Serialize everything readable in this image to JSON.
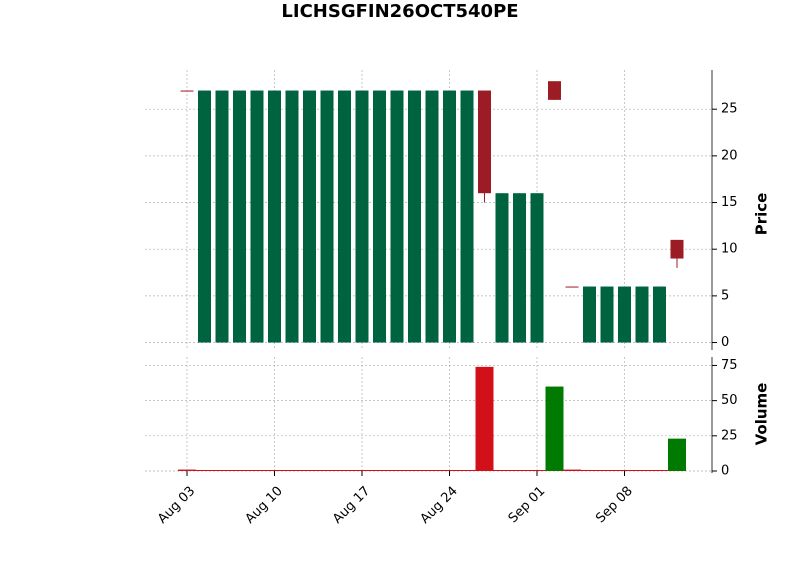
{
  "chart_data": {
    "type": "candlestick",
    "title": "LICHSGFIN26OCT540PE",
    "categories": [
      "Aug 03",
      null,
      null,
      null,
      null,
      "Aug 10",
      null,
      null,
      null,
      null,
      "Aug 17",
      null,
      null,
      null,
      null,
      "Aug 24",
      null,
      null,
      null,
      null,
      "Sep 01",
      null,
      null,
      null,
      null,
      "Sep 08",
      null,
      null,
      null
    ],
    "open": [
      27,
      0,
      0,
      0,
      0,
      0,
      0,
      0,
      0,
      0,
      0,
      0,
      0,
      0,
      0,
      0,
      0,
      27,
      0,
      0,
      0,
      28,
      6,
      0,
      0,
      0,
      0,
      0,
      11
    ],
    "high": [
      27,
      27,
      27,
      27,
      27,
      27,
      27,
      27,
      27,
      27,
      27,
      27,
      27,
      27,
      27,
      27,
      27,
      27,
      16,
      16,
      16,
      28,
      6,
      6,
      6,
      6,
      6,
      6,
      11
    ],
    "low": [
      27,
      0,
      0,
      0,
      0,
      0,
      0,
      0,
      0,
      0,
      0,
      0,
      0,
      0,
      0,
      0,
      0,
      15,
      0,
      0,
      0,
      26,
      6,
      0,
      0,
      0,
      0,
      0,
      8
    ],
    "close": [
      27,
      27,
      27,
      27,
      27,
      27,
      27,
      27,
      27,
      27,
      27,
      27,
      27,
      27,
      27,
      27,
      27,
      16,
      16,
      16,
      16,
      26,
      6,
      6,
      6,
      6,
      6,
      6,
      9
    ],
    "volume": [
      1,
      0,
      0,
      0,
      0,
      0,
      0,
      0,
      0,
      0,
      0,
      0,
      0,
      0,
      0,
      0,
      0,
      74,
      0,
      0,
      0,
      60,
      1,
      0,
      0,
      0,
      0,
      0,
      23
    ],
    "up_color": "#006340",
    "down_color": "#9b1c24",
    "volume_up_color": "#007a00",
    "volume_down_color": "#d1101a",
    "ylabel": "Price",
    "y2label": "Volume",
    "ylim": [
      -0.8,
      29.2
    ],
    "yticks": [
      0,
      5,
      10,
      15,
      20,
      25
    ],
    "y2lim": [
      0,
      81
    ],
    "y2ticks": [
      0,
      25,
      50,
      75
    ],
    "grid": true
  }
}
